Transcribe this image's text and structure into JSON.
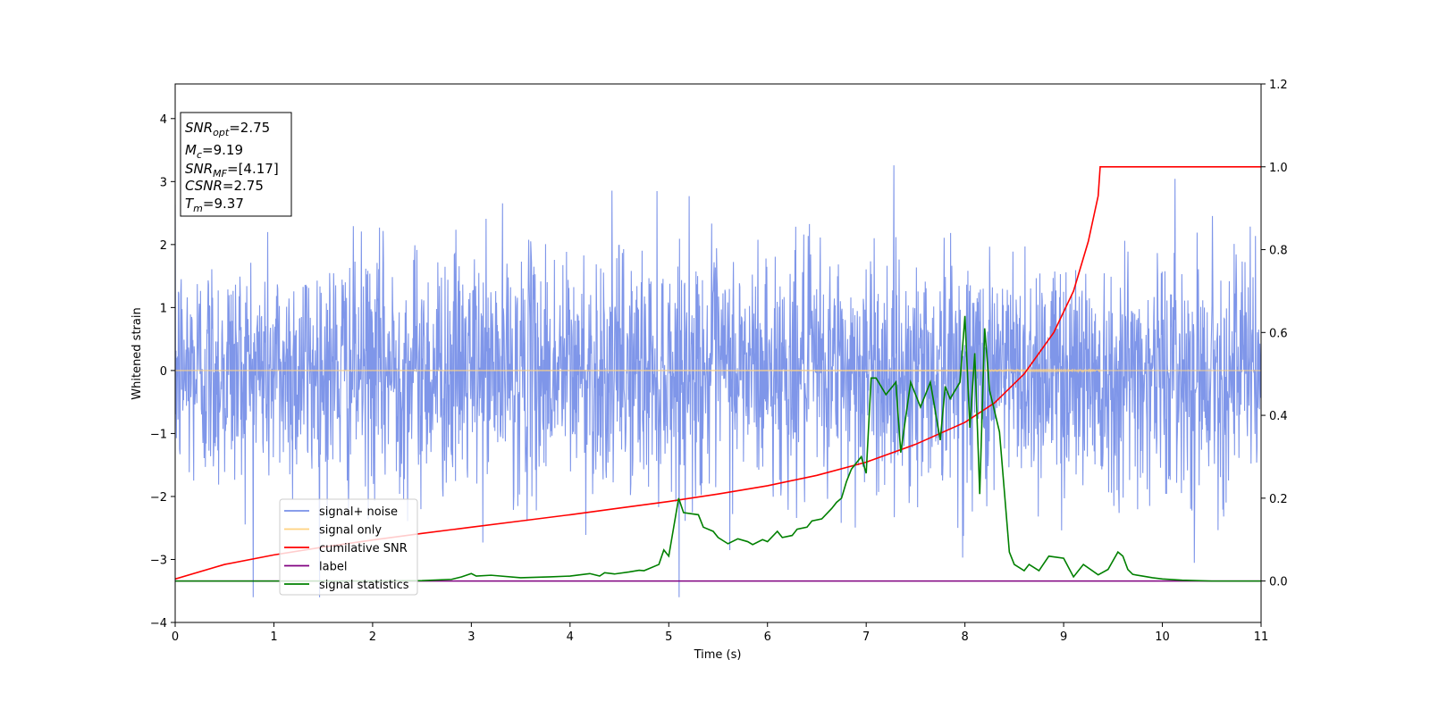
{
  "chart_data": {
    "type": "line",
    "xlabel": "Time (s)",
    "ylabel": "Whitened strain",
    "ylabel_right": "",
    "xlim": [
      0,
      11
    ],
    "ylim": [
      -4,
      4.55
    ],
    "ylim_right": [
      -0.1,
      1.2
    ],
    "x_ticks": [
      0,
      1,
      2,
      3,
      4,
      5,
      6,
      7,
      8,
      9,
      10,
      11
    ],
    "y_ticks": [
      -4,
      -3,
      -2,
      -1,
      0,
      1,
      2,
      3,
      4
    ],
    "y_ticks_right": [
      0.0,
      0.2,
      0.4,
      0.6,
      0.8,
      1.0,
      1.2
    ],
    "x_tick_labels": [
      "0",
      "1",
      "2",
      "3",
      "4",
      "5",
      "6",
      "7",
      "8",
      "9",
      "10",
      "11"
    ],
    "y_tick_labels": [
      "−4",
      "−3",
      "−2",
      "−1",
      "0",
      "1",
      "2",
      "3",
      "4"
    ],
    "y_tick_labels_right": [
      "0.0",
      "0.2",
      "0.4",
      "0.6",
      "0.8",
      "1.0",
      "1.2"
    ],
    "grid": false,
    "legend_position": "lower-left",
    "annotation_position": "top-left",
    "annotation": [
      {
        "name": "SNR",
        "sub": "opt",
        "value": "=2.75"
      },
      {
        "name": "M",
        "sub": "c",
        "value": "=9.19"
      },
      {
        "name": "SNR",
        "sub": "MF",
        "value": "=[4.17]"
      },
      {
        "name": "CSNR",
        "sub": "",
        "value": "=2.75"
      },
      {
        "name": "T",
        "sub": "m",
        "value": "=9.37"
      }
    ],
    "series": [
      {
        "name": "signal+ noise",
        "axis": "left",
        "color": "#7890e8",
        "noise_std": 0.95,
        "approx_range": [
          -3.6,
          3.5
        ]
      },
      {
        "name": "signal only",
        "axis": "left",
        "color": "#ffd27f",
        "chirp_end_time": 9.37,
        "peak_amplitude": 0.45
      },
      {
        "name": "cumilative SNR",
        "axis": "right",
        "color": "#ff0000",
        "x": [
          0,
          0.5,
          1,
          1.5,
          2,
          2.5,
          3,
          3.5,
          4,
          4.5,
          5,
          5.5,
          6,
          6.5,
          7,
          7.5,
          8,
          8.3,
          8.6,
          8.9,
          9.1,
          9.25,
          9.35,
          9.37,
          11
        ],
        "y": [
          0.005,
          0.04,
          0.063,
          0.082,
          0.099,
          0.115,
          0.13,
          0.145,
          0.16,
          0.176,
          0.192,
          0.21,
          0.23,
          0.255,
          0.287,
          0.33,
          0.383,
          0.43,
          0.5,
          0.6,
          0.7,
          0.82,
          0.93,
          1.0,
          1.0
        ]
      },
      {
        "name": "label",
        "axis": "right",
        "color": "#800080",
        "x": [
          0,
          11
        ],
        "y": [
          0,
          0
        ]
      },
      {
        "name": "signal statistics",
        "axis": "right",
        "color": "#008000",
        "x": [
          0,
          1,
          2,
          2.5,
          2.8,
          2.9,
          3.0,
          3.05,
          3.2,
          3.5,
          3.8,
          4.0,
          4.2,
          4.3,
          4.35,
          4.45,
          4.6,
          4.7,
          4.75,
          4.9,
          4.95,
          5.0,
          5.1,
          5.15,
          5.3,
          5.35,
          5.45,
          5.5,
          5.6,
          5.7,
          5.8,
          5.85,
          5.95,
          6.0,
          6.1,
          6.15,
          6.25,
          6.3,
          6.4,
          6.45,
          6.55,
          6.65,
          6.7,
          6.75,
          6.8,
          6.85,
          6.95,
          7.0,
          7.05,
          7.1,
          7.2,
          7.3,
          7.35,
          7.45,
          7.55,
          7.65,
          7.75,
          7.8,
          7.85,
          7.95,
          8.0,
          8.05,
          8.1,
          8.15,
          8.2,
          8.25,
          8.35,
          8.45,
          8.5,
          8.6,
          8.65,
          8.75,
          8.85,
          9.0,
          9.1,
          9.2,
          9.35,
          9.45,
          9.55,
          9.6,
          9.65,
          9.7,
          9.8,
          9.9,
          10.0,
          10.2,
          10.5,
          11.0
        ],
        "y": [
          0.0,
          0.0,
          0.0,
          0.001,
          0.004,
          0.01,
          0.018,
          0.012,
          0.014,
          0.008,
          0.01,
          0.012,
          0.018,
          0.012,
          0.02,
          0.017,
          0.022,
          0.026,
          0.025,
          0.04,
          0.075,
          0.06,
          0.2,
          0.165,
          0.16,
          0.13,
          0.12,
          0.105,
          0.09,
          0.102,
          0.095,
          0.088,
          0.1,
          0.095,
          0.12,
          0.105,
          0.11,
          0.125,
          0.13,
          0.145,
          0.15,
          0.175,
          0.19,
          0.2,
          0.24,
          0.27,
          0.3,
          0.26,
          0.49,
          0.49,
          0.45,
          0.48,
          0.31,
          0.48,
          0.42,
          0.48,
          0.34,
          0.47,
          0.44,
          0.48,
          0.64,
          0.37,
          0.55,
          0.21,
          0.61,
          0.46,
          0.36,
          0.07,
          0.04,
          0.025,
          0.04,
          0.025,
          0.06,
          0.055,
          0.01,
          0.04,
          0.015,
          0.028,
          0.07,
          0.06,
          0.028,
          0.016,
          0.012,
          0.008,
          0.005,
          0.002,
          0.0,
          0.0
        ]
      }
    ]
  }
}
